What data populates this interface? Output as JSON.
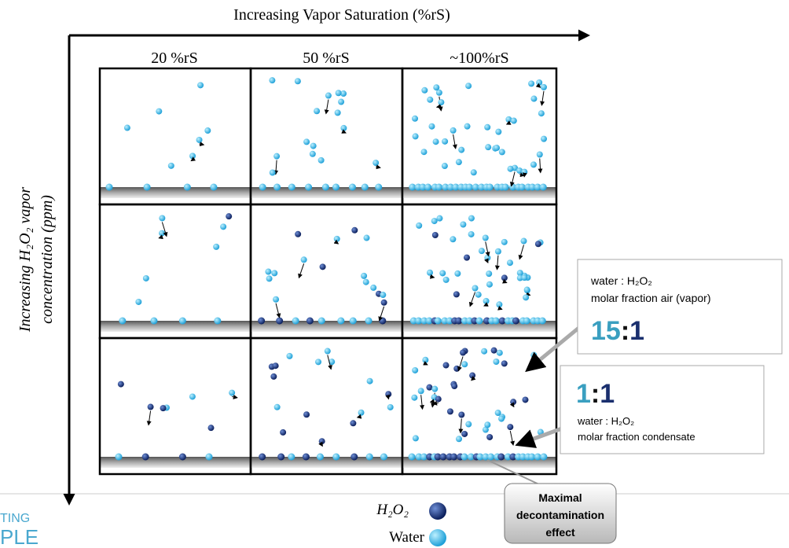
{
  "axis_title": "Increasing Vapor Saturation (%rS)",
  "columns": [
    "20 %rS",
    "50 %rS",
    "~100%rS"
  ],
  "y_axis_title": [
    "Increasing H₂O₂ vapor",
    "concentration (ppm)"
  ],
  "callout_vapor": {
    "line1": "water : H₂O₂",
    "line2": "molar fraction air (vapor)",
    "ratio_left": "15",
    "ratio_sep": ":",
    "ratio_right": "1"
  },
  "callout_condensate": {
    "ratio_left": "1",
    "ratio_sep": ":",
    "ratio_right": "1",
    "line1": "water : H₂O₂",
    "line2": "molar fraction condensate"
  },
  "effect_box": [
    "Maximal",
    "decontamination",
    "effect"
  ],
  "legend": {
    "h2o2": "H₂O₂",
    "water": "Water"
  },
  "logo": [
    "TING",
    "PLE"
  ]
}
